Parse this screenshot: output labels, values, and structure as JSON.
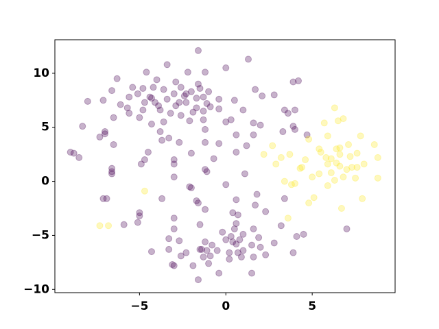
{
  "chart_data": {
    "type": "scatter",
    "xlim": [
      -9.9,
      9.8
    ],
    "ylim": [
      -10.3,
      13.1
    ],
    "xticks": [
      -5,
      0,
      5
    ],
    "yticks": [
      -10,
      -5,
      0,
      5,
      10
    ],
    "alpha": 0.3,
    "series": [
      {
        "color": "#440154",
        "x": [
          -1.6,
          1.3,
          -3.4,
          0,
          -4.6,
          -2.2,
          -1.2,
          -6.3,
          -4.0,
          -2.9,
          3.9,
          4.2,
          -5.4,
          -4.8,
          -4.2,
          -3.6,
          -2.6,
          -1.6,
          -1.5,
          1.7,
          -6.6,
          -5.1,
          -3.0,
          -2.3,
          -2.0,
          -1.0,
          2.8,
          2.1,
          -8.0,
          -7.1,
          -5.6,
          -4.4,
          -4.3,
          -4.1,
          -3.4,
          -2.4,
          -2.7,
          -1.7,
          -1.3,
          -0.4,
          0.5,
          -6.1,
          -4.7,
          -3.9,
          -2.9,
          -2.3,
          -1.7,
          -1.1,
          -0.9,
          -0.4,
          1.0,
          -5.7,
          -4.8,
          -3.8,
          3.4,
          4.0,
          -5.6,
          -3.2,
          -2.6,
          -1.9,
          -1.3,
          3.6,
          -6.5,
          -5.0,
          -1.3,
          0.3,
          -3.6,
          -2.1,
          0,
          1.6,
          -4.3,
          2.0,
          -8.3,
          3.9,
          -1.2,
          4.0,
          3.3,
          4.7,
          -7.0,
          -7.0,
          -3.8,
          -7.3,
          -3.3,
          -3.7,
          0.6,
          1.6,
          -6.5,
          -2.7,
          -1.2,
          -0.4,
          1.2,
          -9.0,
          -8.8,
          -8.5,
          -4.5,
          -2.0,
          0.6,
          -4.7,
          -3.0,
          -0.7,
          -4.9,
          -3.0,
          -6.6,
          -6.6,
          -6.6,
          -1.2,
          -1.1,
          1.1,
          -3.0,
          0,
          -2.1,
          -2.0,
          1.8,
          -7.1,
          -6.9,
          -3.7,
          -1.7,
          -1.6,
          0.6,
          3.4,
          1.7,
          -1.2,
          -5.0,
          2.3,
          0.4,
          -5.0,
          0.7,
          -3.0,
          -5.9,
          -5.1,
          -1.5,
          0.6,
          3.2,
          7.0,
          0.5,
          1.6,
          -3.0,
          -0.2,
          4.5,
          4.1,
          1.0,
          -3.3,
          0.3,
          0.8,
          1.9,
          -2.7,
          0,
          -1.2,
          0.4,
          0.6,
          1.5,
          2.8,
          -0.8,
          2.0,
          -1.5,
          -1.4,
          -1.1,
          -0.5,
          -4.3,
          1.0,
          -3.3,
          3.9,
          0.7,
          -2.3,
          -2.6,
          -0.9,
          0.2,
          1.6,
          2.3,
          -1.3,
          0.9,
          0.2,
          -3.1,
          -3.0,
          -1.9,
          -1.0,
          -0.4,
          1.5,
          -1.6
        ],
        "values": [
          12.1,
          11.3,
          10.8,
          10.5,
          10.1,
          10.1,
          10.1,
          9.5,
          9.4,
          9.2,
          9.2,
          9.3,
          8.7,
          8.6,
          8.7,
          8.5,
          8.7,
          9.0,
          8.6,
          8.5,
          8.4,
          8.1,
          8.1,
          8.1,
          8.3,
          8.3,
          8.0,
          7.9,
          7.4,
          7.5,
          7.8,
          7.8,
          7.7,
          7.3,
          7.6,
          7.9,
          7.3,
          7.7,
          7.8,
          7.6,
          7.5,
          7.1,
          7.3,
          7.0,
          7.0,
          7.3,
          6.8,
          7.2,
          6.9,
          6.7,
          6.6,
          6.8,
          6.6,
          6.6,
          6.6,
          6.6,
          6.3,
          6.3,
          6.1,
          6.4,
          6.5,
          6.3,
          5.9,
          5.9,
          5.7,
          5.7,
          5.5,
          5.6,
          5.5,
          5.4,
          5.3,
          5.2,
          5.1,
          5.1,
          4.8,
          4.8,
          4.6,
          4.3,
          4.6,
          4.4,
          4.6,
          4.1,
          4.0,
          3.8,
          4.3,
          4.3,
          3.4,
          3.6,
          3.6,
          3.5,
          3.3,
          2.7,
          2.6,
          2.2,
          2.7,
          2.6,
          2.7,
          2.0,
          2.0,
          2.1,
          1.6,
          1.6,
          1.2,
          0.9,
          0.7,
          1.1,
          0.9,
          0.7,
          0.4,
          -0.3,
          -0.5,
          -0.6,
          -1.2,
          -1.6,
          -1.6,
          -1.6,
          -1.8,
          -2.0,
          -1.7,
          -1.6,
          -2.2,
          -2.6,
          -2.9,
          -2.8,
          -2.9,
          -3.2,
          -3.1,
          -3.4,
          -4.0,
          -3.8,
          -4.0,
          -3.9,
          -4.1,
          -4.4,
          -4.4,
          -4.4,
          -4.4,
          -4.7,
          -4.9,
          -5.1,
          -4.9,
          -5.3,
          -5.1,
          -5.4,
          -5.2,
          -5.5,
          -5.4,
          -5.6,
          -5.6,
          -5.8,
          -5.9,
          -5.7,
          -5.9,
          -6.1,
          -6.3,
          -6.3,
          -6.4,
          -6.4,
          -6.5,
          -6.4,
          -6.3,
          -6.6,
          -6.6,
          -6.6,
          -6.9,
          -6.9,
          -6.6,
          -7.0,
          -6.8,
          -7.0,
          -7.0,
          -7.2,
          -7.7,
          -7.8,
          -7.8,
          -7.6,
          -8.5,
          -8.5,
          -9.1
        ]
      },
      {
        "color": "#fde725",
        "x": [
          6.3,
          5.7,
          6.5,
          6.8,
          7.8,
          5.9,
          4.8,
          2.7,
          5.4,
          7.1,
          8.6,
          6.4,
          6.6,
          5.5,
          7.6,
          2.2,
          3.2,
          3.7,
          5.8,
          6.6,
          7.2,
          8.8,
          4.6,
          6.1,
          6.4,
          2.9,
          5.9,
          6.6,
          7.3,
          8.0,
          4.3,
          4.4,
          7.0,
          7.6,
          5.4,
          6.1,
          5.0,
          6.8,
          7.5,
          8.8,
          3.4,
          4.0,
          3.8,
          6.3,
          5.9,
          -4.7,
          5.1,
          7.9,
          4.8,
          6.7,
          3.6,
          -7.3,
          -6.8
        ],
        "values": [
          6.8,
          5.4,
          5.6,
          5.8,
          4.2,
          4.2,
          3.9,
          3.3,
          3.0,
          3.4,
          3.4,
          3.0,
          3.1,
          2.7,
          2.6,
          2.5,
          2.2,
          2.5,
          2.2,
          2.5,
          2.3,
          2.2,
          2.0,
          2.1,
          1.7,
          1.6,
          1.6,
          1.4,
          1.3,
          1.6,
          1.2,
          1.3,
          1.1,
          1.3,
          0.7,
          0.8,
          0.4,
          0.4,
          0.3,
          0.3,
          0,
          -0.2,
          -0.3,
          0.1,
          -0.4,
          -0.9,
          -1.5,
          -1.6,
          -2.0,
          -2.5,
          -3.4,
          -4.1,
          -4.1
        ]
      }
    ]
  }
}
